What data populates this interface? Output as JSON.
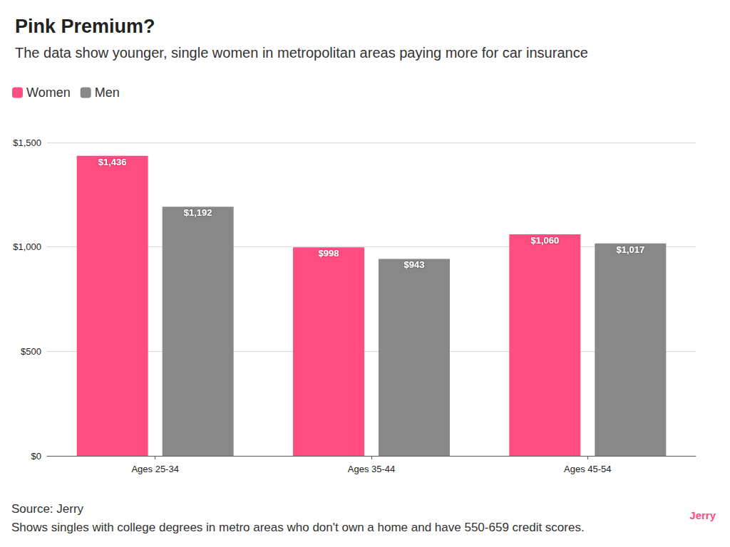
{
  "chart_data": {
    "type": "bar",
    "title": "Pink Premium?",
    "subtitle": "The data show younger, single women in metropolitan areas paying more for car insurance",
    "categories": [
      "Ages 25-34",
      "Ages 35-44",
      "Ages 45-54"
    ],
    "series": [
      {
        "name": "Women",
        "color": "#ff4d82",
        "values": [
          1436,
          998,
          1060
        ],
        "value_labels": [
          "$1,436",
          "$998",
          "$1,060"
        ]
      },
      {
        "name": "Men",
        "color": "#888888",
        "values": [
          1192,
          943,
          1017
        ],
        "value_labels": [
          "$1,192",
          "$943",
          "$1,017"
        ]
      }
    ],
    "ylim": [
      0,
      1500
    ],
    "yticks": [
      {
        "value": 0,
        "label": "$0"
      },
      {
        "value": 500,
        "label": "$500"
      },
      {
        "value": 1000,
        "label": "$1,000"
      },
      {
        "value": 1500,
        "label": "$1,500"
      }
    ],
    "grid": true,
    "legend": "top-left",
    "data_labels": true,
    "source": "Source: Jerry",
    "caption": "Shows singles with college degrees in metro areas who don't own a home and have 550-659 credit scores.",
    "brand": "Jerry"
  }
}
